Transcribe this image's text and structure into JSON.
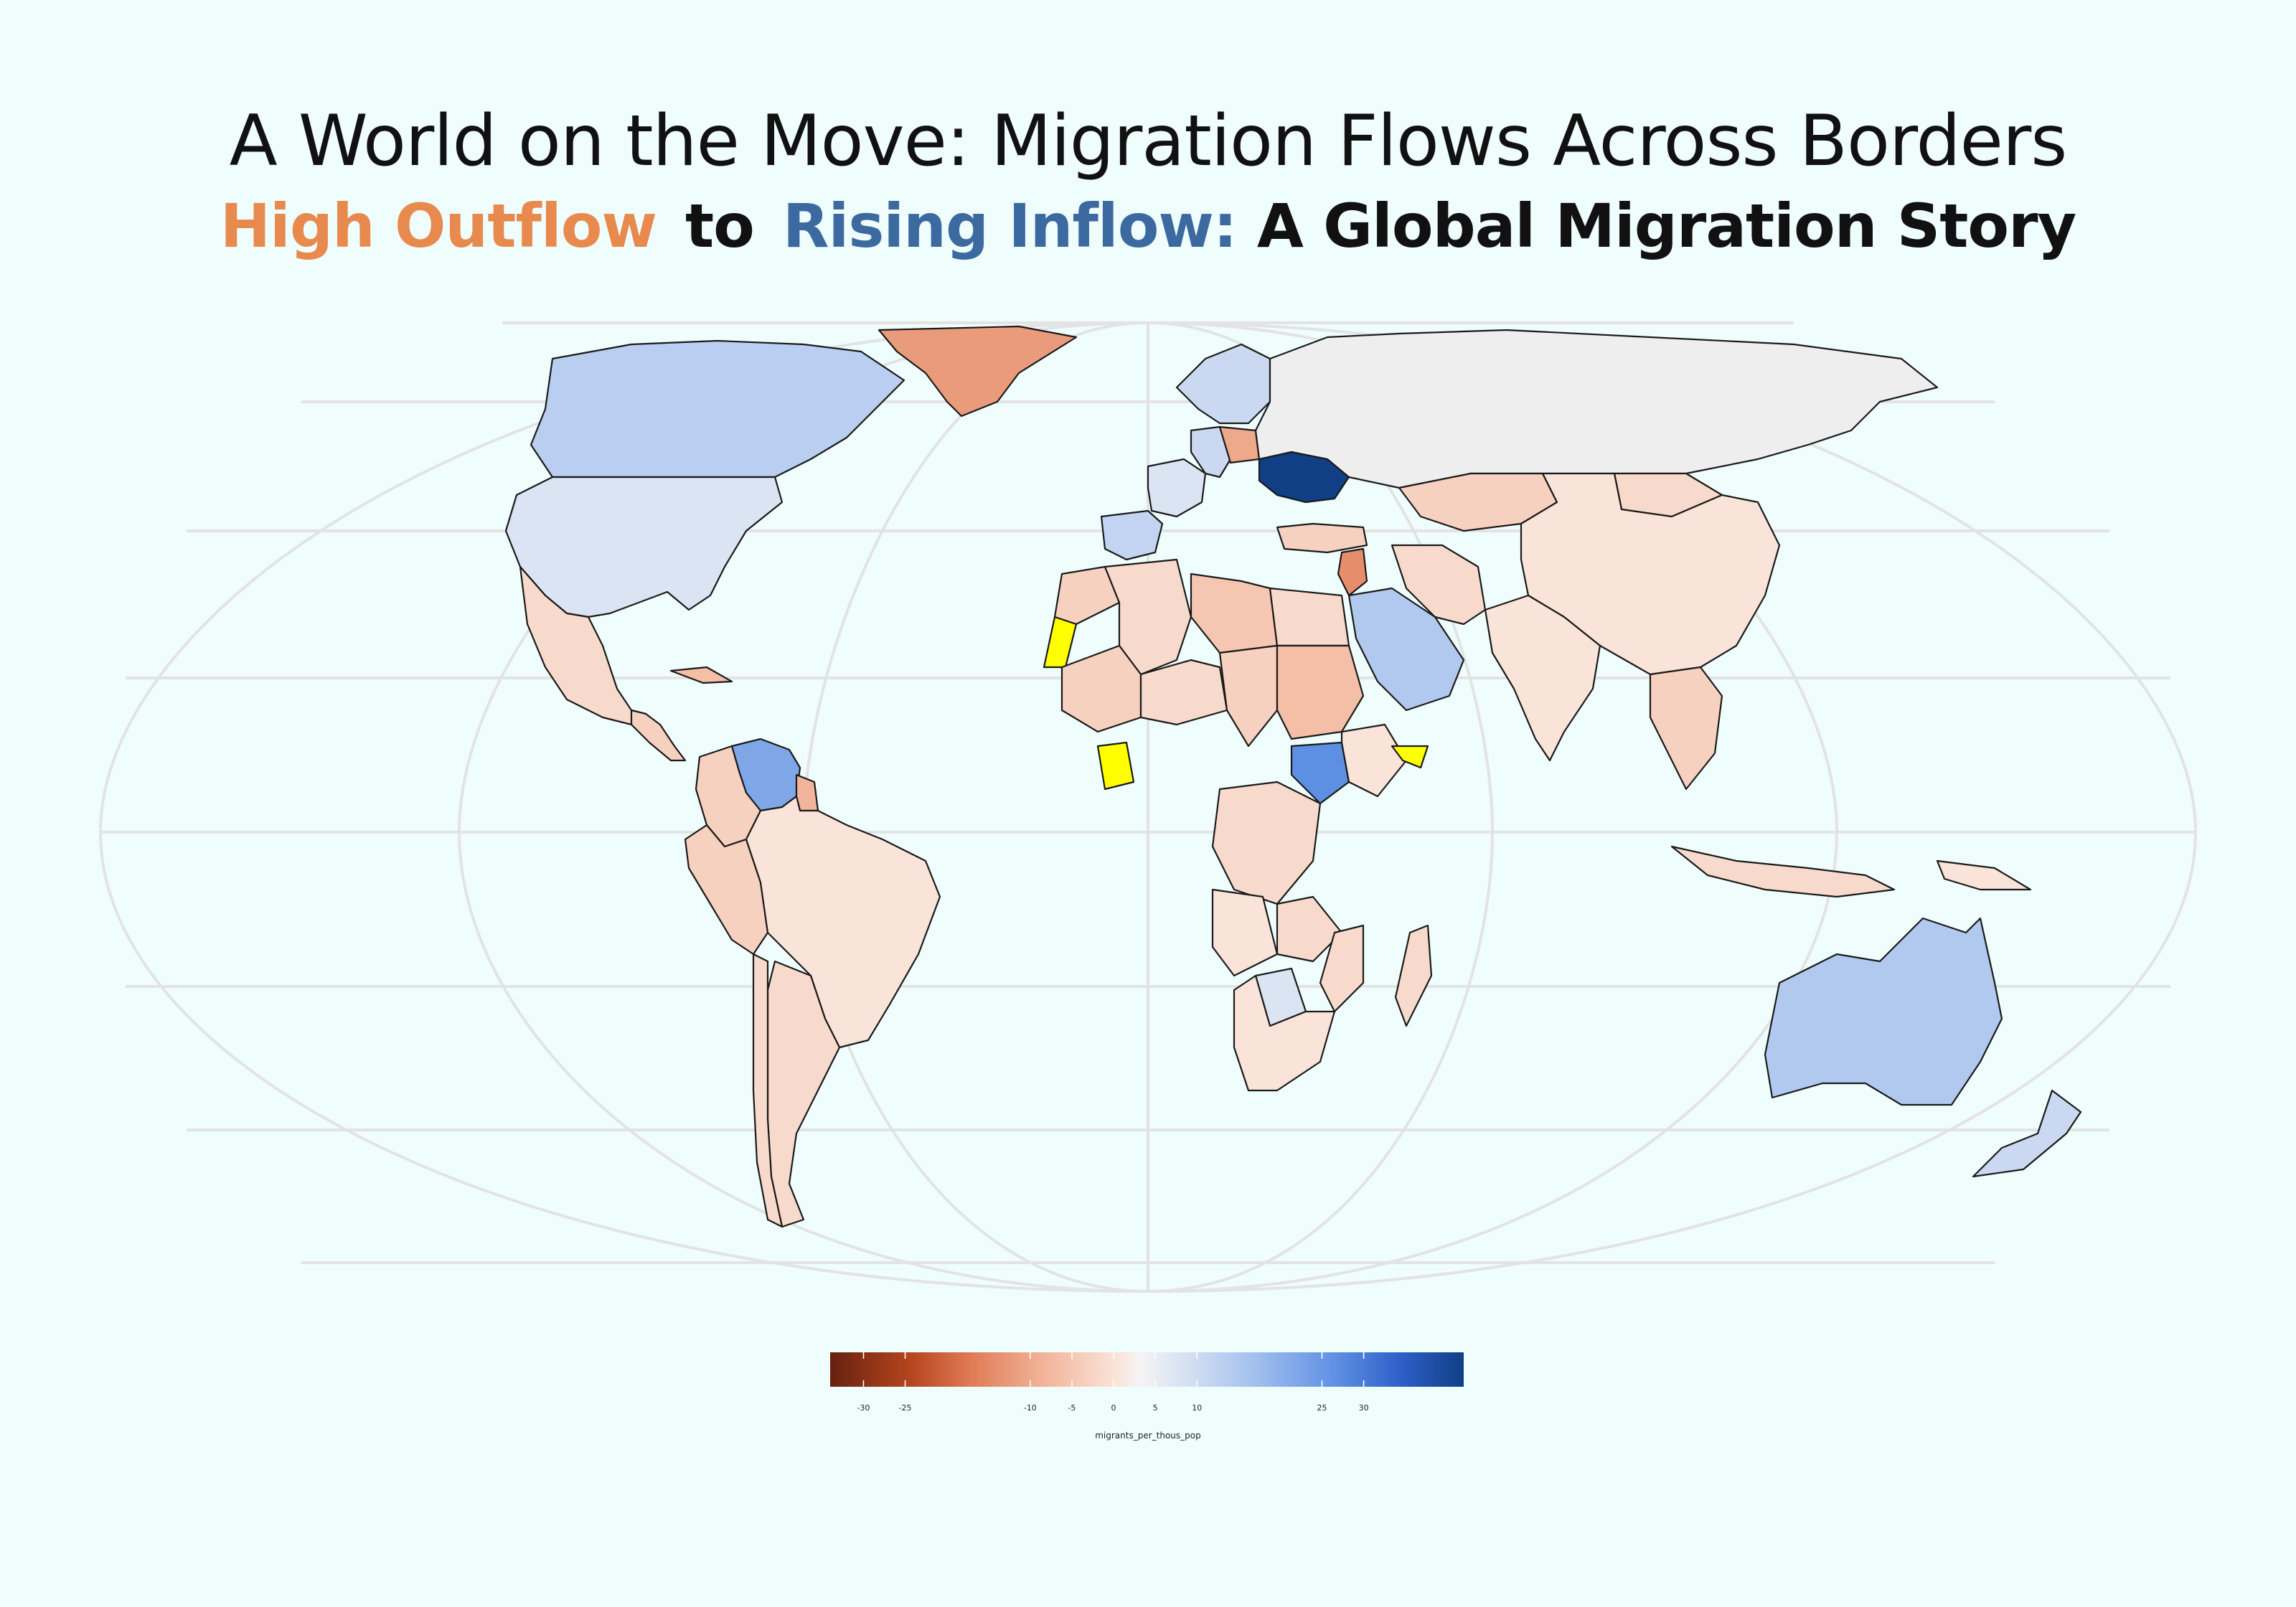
{
  "title": "A World on the Move: Migration Flows Across Borders",
  "subtitle": {
    "part1": "High Outflow",
    "part2": "to",
    "part3": "Rising Inflow:",
    "part4": "A Global Migration Story"
  },
  "colors": {
    "background": "#effefd",
    "outflow": "#e8894e",
    "inflow": "#3c6aa0",
    "no_data": "#ffff00",
    "unmatched": "#eeeeee"
  },
  "legend": {
    "label": "migrants_per_thous_pop",
    "ticks": [
      "-30",
      "-25",
      "-10",
      "-5",
      "0",
      "5",
      "10",
      "25",
      "30"
    ],
    "tick_values": [
      -30,
      -25,
      -10,
      -5,
      0,
      5,
      10,
      25,
      30
    ],
    "range": [
      -34,
      42
    ]
  },
  "regions": [
    {
      "name": "Canada",
      "value": 7
    },
    {
      "name": "United States",
      "value": 3
    },
    {
      "name": "Greenland",
      "value": -10
    },
    {
      "name": "Mexico",
      "value": -2
    },
    {
      "name": "Central America",
      "value": -3
    },
    {
      "name": "Cuba",
      "value": -5
    },
    {
      "name": "Venezuela",
      "value": 15
    },
    {
      "name": "Colombia",
      "value": -3
    },
    {
      "name": "Guyana",
      "value": -6
    },
    {
      "name": "Peru",
      "value": -3
    },
    {
      "name": "Brazil",
      "value": -1
    },
    {
      "name": "Chile",
      "value": -2
    },
    {
      "name": "Argentina",
      "value": -2
    },
    {
      "name": "Spain",
      "value": 6
    },
    {
      "name": "France",
      "value": 3
    },
    {
      "name": "Germany",
      "value": 5
    },
    {
      "name": "Poland",
      "value": -8
    },
    {
      "name": "Ukraine",
      "value": 42
    },
    {
      "name": "Scandinavia",
      "value": 5
    },
    {
      "name": "Russia",
      "value": null
    },
    {
      "name": "Turkey",
      "value": -3
    },
    {
      "name": "Syria",
      "value": -12
    },
    {
      "name": "Saudi Arabia",
      "value": 8
    },
    {
      "name": "Iran",
      "value": -2
    },
    {
      "name": "Kazakhstan",
      "value": -3
    },
    {
      "name": "China",
      "value": -1
    },
    {
      "name": "Mongolia",
      "value": -2
    },
    {
      "name": "India",
      "value": -1
    },
    {
      "name": "Southeast Asia",
      "value": -3
    },
    {
      "name": "Western Sahara",
      "value": null,
      "no_data": true
    },
    {
      "name": "Côte d'Ivoire",
      "value": null,
      "no_data": true
    },
    {
      "name": "Somaliland",
      "value": null,
      "no_data": true
    },
    {
      "name": "Morocco",
      "value": -3
    },
    {
      "name": "Algeria",
      "value": -2
    },
    {
      "name": "Libya",
      "value": -4
    },
    {
      "name": "Egypt",
      "value": -2
    },
    {
      "name": "Mali",
      "value": -3
    },
    {
      "name": "Niger",
      "value": -2
    },
    {
      "name": "Chad",
      "value": -3
    },
    {
      "name": "Sudan",
      "value": -5
    },
    {
      "name": "South Sudan",
      "value": 20
    },
    {
      "name": "Ethiopia",
      "value": -1
    },
    {
      "name": "DR Congo",
      "value": -2
    },
    {
      "name": "Angola",
      "value": -1
    },
    {
      "name": "Zambia",
      "value": -2
    },
    {
      "name": "Botswana",
      "value": 3
    },
    {
      "name": "South Africa",
      "value": -1
    },
    {
      "name": "Mozambique",
      "value": -2
    },
    {
      "name": "Madagascar",
      "value": -2
    },
    {
      "name": "Australia",
      "value": 8
    },
    {
      "name": "New Zealand",
      "value": 5
    },
    {
      "name": "Indonesia",
      "value": -2
    },
    {
      "name": "Papua New Guinea",
      "value": -1
    }
  ]
}
